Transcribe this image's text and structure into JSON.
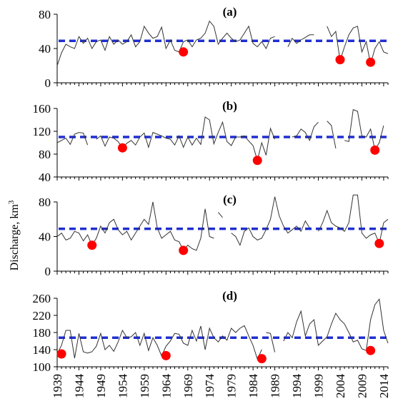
{
  "chart_data": {
    "type": "line",
    "x_ticks": [
      1939,
      1944,
      1949,
      1954,
      1959,
      1964,
      1969,
      1974,
      1979,
      1984,
      1989,
      1994,
      1999,
      2004,
      2009,
      2014
    ],
    "x_range": [
      1939,
      2015
    ],
    "ylabel": "Discharge, km",
    "ylabel_sup": "3",
    "colors": {
      "series": "#333333",
      "threshold": "#1f2fd0",
      "marker": "#ff0000"
    },
    "panels": [
      {
        "label": "(a)",
        "ylim": [
          0,
          80
        ],
        "yticks": [
          0,
          40,
          80
        ],
        "threshold": 49,
        "segments": [
          {
            "x": [
              1939,
              1940,
              1941,
              1942,
              1943,
              1944,
              1945,
              1946,
              1947,
              1948,
              1949,
              1950,
              1951,
              1952,
              1953,
              1954,
              1955,
              1956,
              1957,
              1958,
              1959,
              1960,
              1961,
              1962,
              1963,
              1964,
              1965,
              1966,
              1967,
              1968,
              1969,
              1970,
              1971,
              1972,
              1973,
              1974,
              1975,
              1976,
              1977,
              1978,
              1979,
              1980,
              1981,
              1982,
              1983,
              1984,
              1985,
              1986,
              1987,
              1988,
              1989
            ],
            "y": [
              20,
              35,
              45,
              42,
              40,
              54,
              46,
              52,
              40,
              48,
              50,
              38,
              54,
              45,
              50,
              45,
              48,
              56,
              42,
              48,
              66,
              58,
              52,
              54,
              65,
              40,
              50,
              38,
              36,
              48,
              50,
              42,
              50,
              52,
              58,
              72,
              66,
              45,
              52,
              58,
              52,
              48,
              50,
              58,
              66,
              46,
              42,
              48,
              40,
              52,
              54
            ]
          },
          {
            "x": [
              1992,
              1993,
              1994,
              1995,
              1996,
              1997,
              1998
            ],
            "y": [
              42,
              52,
              46,
              50,
              53,
              56,
              56
            ]
          },
          {
            "x": [
              2001,
              2002,
              2003,
              2004,
              2005,
              2006,
              2007,
              2008,
              2009,
              2010,
              2011,
              2012,
              2013,
              2014,
              2015
            ],
            "y": [
              66,
              54,
              60,
              26,
              42,
              56,
              64,
              66,
              36,
              48,
              22,
              40,
              48,
              36,
              34
            ]
          }
        ],
        "markers": [
          {
            "x": 1968,
            "y": 36
          },
          {
            "x": 2004,
            "y": 27
          },
          {
            "x": 2011,
            "y": 24
          }
        ]
      },
      {
        "label": "(b)",
        "ylim": [
          40,
          160
        ],
        "yticks": [
          40,
          80,
          120,
          160
        ],
        "threshold": 110,
        "segments": [
          {
            "x": [
              1939,
              1940,
              1941,
              1942,
              1943,
              1944,
              1945,
              1946
            ],
            "y": [
              100,
              104,
              108,
              97,
              115,
              118,
              117,
              96
            ]
          },
          {
            "x": [
              1948,
              1949,
              1950,
              1951,
              1952,
              1953,
              1954,
              1955,
              1956,
              1957,
              1958,
              1959,
              1960,
              1961,
              1962,
              1963,
              1964,
              1965,
              1966,
              1967,
              1968,
              1969,
              1970,
              1971,
              1972,
              1973,
              1974,
              1975,
              1976,
              1977,
              1978,
              1979,
              1980,
              1981,
              1982,
              1983,
              1984,
              1985,
              1986,
              1987,
              1988,
              1989
            ],
            "y": [
              106,
              112,
              94,
              110,
              108,
              102,
              91,
              99,
              104,
              96,
              110,
              117,
              92,
              118,
              115,
              112,
              108,
              106,
              96,
              112,
              92,
              110,
              96,
              108,
              97,
              145,
              140,
              98,
              118,
              136,
              102,
              95,
              110,
              110,
              112,
              103,
              95,
              69,
              100,
              78,
              125,
              106
            ]
          },
          {
            "x": [
              1993,
              1994,
              1995,
              1996,
              1997,
              1998,
              1999
            ],
            "y": [
              110,
              112,
              124,
              118,
              104,
              128,
              136
            ]
          },
          {
            "x": [
              2001,
              2002,
              2003
            ],
            "y": [
              138,
              130,
              90
            ]
          },
          {
            "x": [
              2005,
              2006,
              2007,
              2008,
              2009,
              2010,
              2011,
              2012,
              2013,
              2014
            ],
            "y": [
              104,
              102,
              158,
              155,
              112,
              110,
              124,
              87,
              100,
              130
            ]
          }
        ],
        "markers": [
          {
            "x": 1954,
            "y": 91
          },
          {
            "x": 1985,
            "y": 69
          },
          {
            "x": 2012,
            "y": 87
          }
        ]
      },
      {
        "label": "(c)",
        "ylim": [
          0,
          80
        ],
        "yticks": [
          0,
          40,
          80
        ],
        "threshold": 49,
        "segments": [
          {
            "x": [
              1939,
              1940,
              1941,
              1942,
              1943,
              1944,
              1945,
              1946,
              1947,
              1948,
              1949,
              1950,
              1951,
              1952,
              1953,
              1954,
              1955,
              1956,
              1957,
              1958,
              1959,
              1960,
              1961,
              1962,
              1963,
              1964,
              1965,
              1966,
              1967,
              1968,
              1969,
              1970,
              1971,
              1972,
              1973,
              1974,
              1975
            ],
            "y": [
              40,
              44,
              36,
              38,
              46,
              44,
              35,
              42,
              30,
              38,
              52,
              44,
              56,
              60,
              48,
              42,
              46,
              36,
              44,
              52,
              60,
              54,
              80,
              50,
              38,
              42,
              46,
              36,
              34,
              24,
              30,
              26,
              24,
              38,
              72,
              40,
              38
            ]
          },
          {
            "x": [
              1976,
              1977
            ],
            "y": [
              68,
              62
            ]
          },
          {
            "x": [
              1979,
              1980,
              1981,
              1982,
              1983,
              1984,
              1985,
              1986,
              1987,
              1988,
              1989,
              1990,
              1991,
              1992,
              1993,
              1994,
              1995,
              1996,
              1997
            ],
            "y": [
              44,
              40,
              30,
              46,
              50,
              40,
              36,
              38,
              48,
              60,
              86,
              64,
              52,
              44,
              48,
              52,
              46,
              58,
              50
            ]
          },
          {
            "x": [
              1999,
              2000,
              2001,
              2002,
              2003,
              2004,
              2005,
              2006,
              2007,
              2008,
              2009,
              2010,
              2011,
              2012,
              2013,
              2014,
              2015
            ],
            "y": [
              46,
              56,
              70,
              56,
              52,
              50,
              46,
              56,
              88,
              88,
              44,
              38,
              42,
              44,
              32,
              56,
              60
            ]
          }
        ],
        "markers": [
          {
            "x": 1947,
            "y": 30
          },
          {
            "x": 1968,
            "y": 24
          },
          {
            "x": 2013,
            "y": 32
          }
        ]
      },
      {
        "label": "(d)",
        "ylim": [
          100,
          260
        ],
        "yticks": [
          100,
          140,
          180,
          220,
          260
        ],
        "threshold": 168,
        "segments": [
          {
            "x": [
              1939,
              1940,
              1941,
              1942,
              1943,
              1944,
              1945,
              1946,
              1947,
              1948,
              1949,
              1950,
              1951,
              1952,
              1953,
              1954,
              1955,
              1956,
              1957,
              1958,
              1959,
              1960,
              1961,
              1962,
              1963,
              1964,
              1965,
              1966,
              1967,
              1968,
              1969,
              1970,
              1971,
              1972,
              1973,
              1974,
              1975,
              1976,
              1977,
              1978,
              1979,
              1980,
              1981,
              1982,
              1983,
              1984,
              1985,
              1986
            ],
            "y": [
              130,
              150,
              185,
              185,
              120,
              178,
              135,
              132,
              135,
              148,
              178,
              140,
              150,
              136,
              158,
              185,
              168,
              170,
              180,
              150,
              178,
              138,
              168,
              150,
              125,
              148,
              160,
              178,
              176,
              155,
              150,
              185,
              160,
              195,
              140,
              190,
              168,
              158,
              172,
              162,
              190,
              180,
              190,
              196,
              172,
              150,
              118,
              140
            ]
          },
          {
            "x": [
              1987,
              1988,
              1989
            ],
            "y": [
              180,
              178,
              134
            ]
          },
          {
            "x": [
              1991,
              1992,
              1993,
              1994,
              1995,
              1996,
              1997,
              1998,
              1999,
              2000,
              2001,
              2002,
              2003,
              2004,
              2005,
              2006,
              2007,
              2008,
              2009,
              2010,
              2011,
              2012,
              2013,
              2014
            ],
            "y": [
              160,
              180,
              168,
              205,
              230,
              172,
              200,
              210,
              150,
              160,
              170,
              200,
              225,
              210,
              200,
              180,
              158,
              162,
              142,
              138,
              210,
              245,
              258,
              185
            ]
          },
          {
            "x": [
              2014,
              2015
            ],
            "y": [
              185,
              155
            ]
          }
        ],
        "markers": [
          {
            "x": 1940,
            "y": 130
          },
          {
            "x": 1964,
            "y": 126
          },
          {
            "x": 1986,
            "y": 119
          },
          {
            "x": 2011,
            "y": 138
          }
        ]
      }
    ]
  }
}
